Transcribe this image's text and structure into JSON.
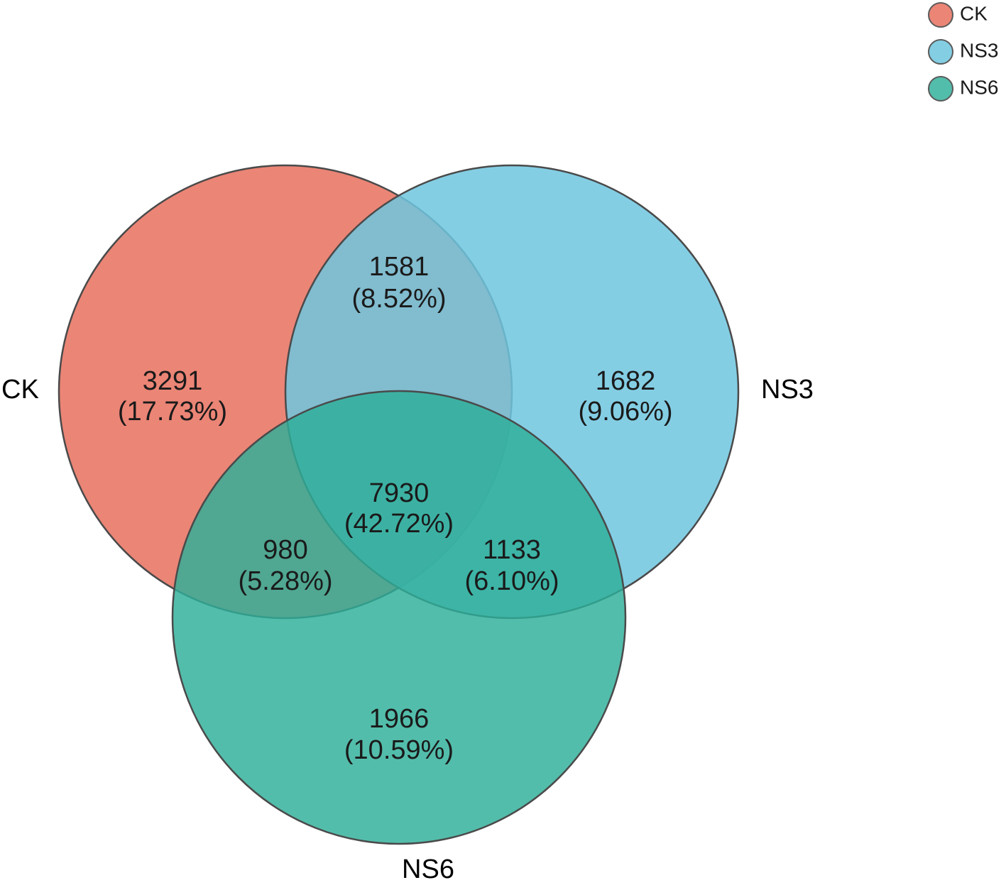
{
  "sets": [
    {
      "id": "ck",
      "label": "CK",
      "color": "#E8705E"
    },
    {
      "id": "ns3",
      "label": "NS3",
      "color": "#6EC6DF"
    },
    {
      "id": "ns6",
      "label": "NS6",
      "color": "#2DAE98"
    }
  ],
  "legend": {
    "items": [
      {
        "label": "CK",
        "color": "#E8705E"
      },
      {
        "label": "NS3",
        "color": "#6EC6DF"
      },
      {
        "label": "NS6",
        "color": "#2DAE98"
      }
    ]
  },
  "regions": {
    "ck_only": {
      "count": "3291",
      "percent": "(17.73%)"
    },
    "ns3_only": {
      "count": "1682",
      "percent": "(9.06%)"
    },
    "ns6_only": {
      "count": "1966",
      "percent": "(10.59%)"
    },
    "ck_ns3": {
      "count": "1581",
      "percent": "(8.52%)"
    },
    "ck_ns6": {
      "count": "980",
      "percent": "(5.28%)"
    },
    "ns3_ns6": {
      "count": "1133",
      "percent": "(6.10%)"
    },
    "all": {
      "count": "7930",
      "percent": "(42.72%)"
    }
  }
}
